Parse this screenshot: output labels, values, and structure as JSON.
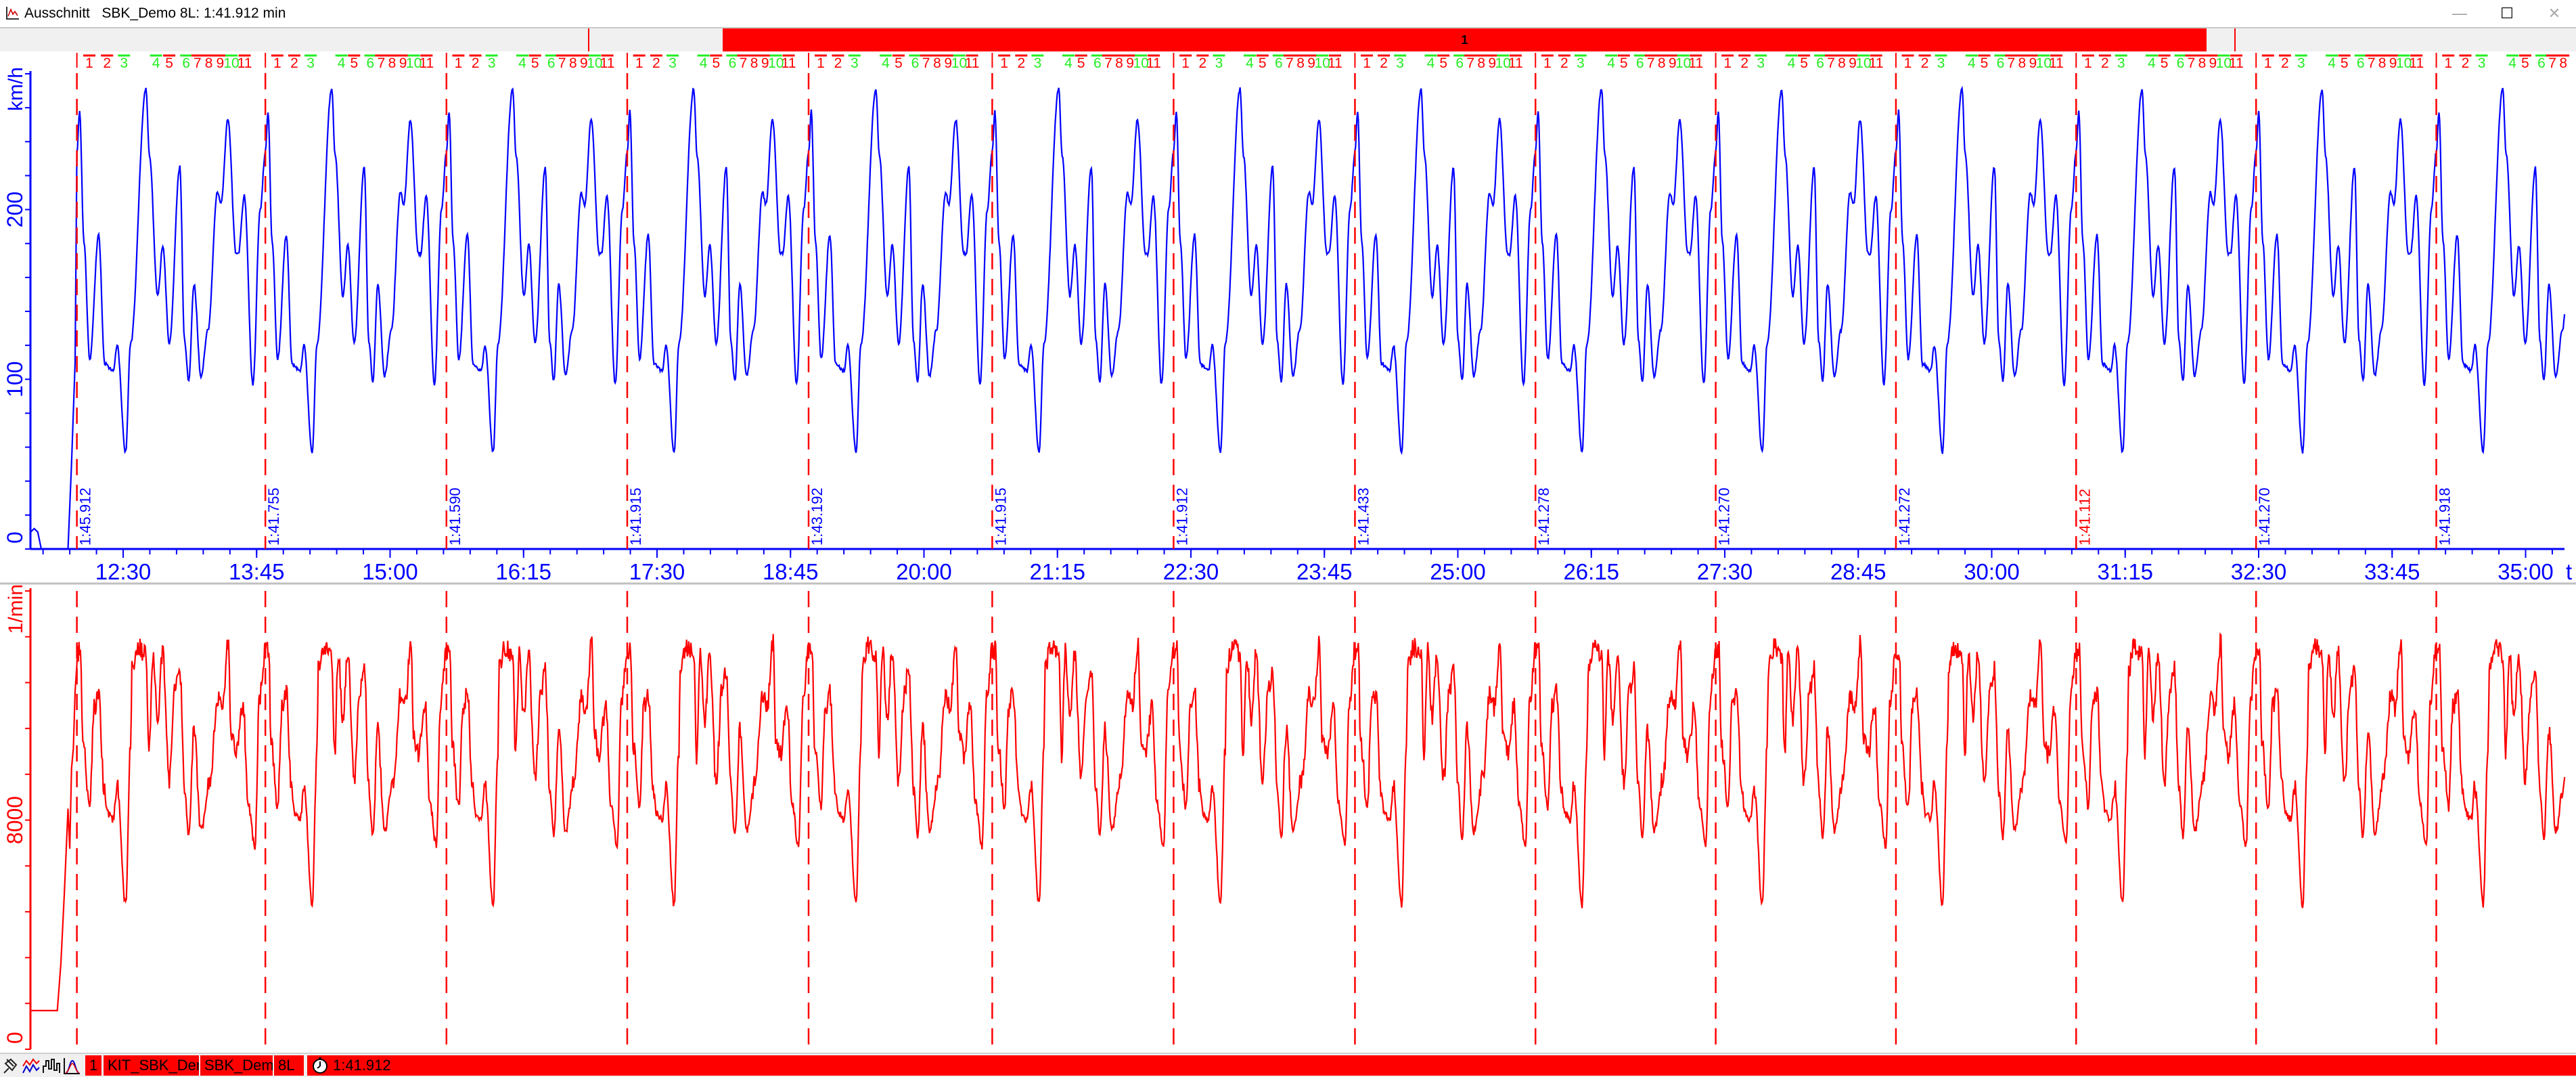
{
  "window": {
    "title": "Ausschnitt   SBK_Demo 8L: 1:41.912 min",
    "minimize_label": "—",
    "maximize_label": "☐",
    "close_label": "✕",
    "app_icon": "chart-window-icon"
  },
  "overview_bar": {
    "label": "1",
    "color": "#ff0000"
  },
  "laps": {
    "first_marker_time": "12:04",
    "times_label": [
      "1:45.912",
      "1:41.755",
      "1:41.590",
      "1:41.915",
      "1:43.192",
      "1:41.915",
      "1:41.912",
      "1:41.433",
      "1:41.278",
      "1:41.270",
      "1:41.272",
      "1:41.112",
      "1:41.270",
      "1:41.918"
    ],
    "times_s": [
      105.912,
      101.755,
      101.59,
      101.915,
      103.192,
      101.915,
      101.912,
      101.433,
      101.278,
      101.27,
      101.272,
      101.112,
      101.27,
      101.918
    ],
    "marker_color": "#ff0000",
    "label_color": "#0000ff",
    "fastest_label_color": "#ff0000"
  },
  "sectors": {
    "labels": [
      "1",
      "2",
      "3",
      "4",
      "5",
      "6",
      "7",
      "8",
      "9",
      "10",
      "11"
    ],
    "lap_fraction": [
      0.066,
      0.16,
      0.25,
      0.42,
      0.49,
      0.58,
      0.64,
      0.7,
      0.76,
      0.82,
      0.89
    ],
    "colors": [
      "#ff0000",
      "#ff0000",
      "#22ee22",
      "#22ee22",
      "#ff0000",
      "#22ee22",
      "#ff0000",
      "#ff0000",
      "#ff0000",
      "#22ee22",
      "#ff0000"
    ]
  },
  "chart_data": [
    {
      "type": "line",
      "ylabel": "km/h",
      "xlabel": "t",
      "color": "#0000ff",
      "ylim": [
        0,
        280
      ],
      "xlim": [
        "11:38",
        "35:22"
      ],
      "y_tick_labels": [
        "0",
        "100",
        "200"
      ],
      "y_minor_step": 20,
      "x_tick_labels": [
        "12:30",
        "13:45",
        "15:00",
        "16:15",
        "17:30",
        "18:45",
        "20:00",
        "21:15",
        "22:30",
        "23:45",
        "25:00",
        "26:15",
        "27:30",
        "28:45",
        "30:00",
        "31:15",
        "32:30",
        "33:45",
        "35:00"
      ],
      "x_minor_step_s": 15,
      "pre_lap": [
        [
          "11:38",
          10
        ],
        [
          "11:40",
          12
        ],
        [
          "11:42",
          10
        ],
        [
          "11:44",
          0
        ],
        [
          "11:59",
          0
        ],
        [
          "12:01",
          50
        ],
        [
          "12:03",
          110
        ]
      ],
      "lap_profile": {
        "t_s": [
          0,
          1.5,
          3.8,
          6.95,
          11.8,
          15,
          19.6,
          21.7,
          26.3,
          29,
          37.3,
          39.2,
          43.6,
          46.4,
          49.9,
          55.6,
          58.1,
          60.4,
          63.2,
          67,
          70.8,
          75.9,
          77.8,
          81.5,
          86,
          87.2,
          90.4,
          95,
          99,
          101.755
        ],
        "values": [
          234,
          258,
          181,
          112,
          185,
          109,
          105,
          120,
          57,
          121,
          271,
          232,
          149,
          179,
          121,
          225,
          123,
          99,
          156,
          102,
          129,
          210,
          203,
          253,
          174,
          174,
          208,
          97,
          200,
          234
        ]
      }
    },
    {
      "type": "line",
      "ylabel": "1/min",
      "color": "#ff0000",
      "ylim": [
        0,
        16000
      ],
      "xlim": [
        "11:38",
        "35:22"
      ],
      "y_tick_labels": [
        "0",
        "8000"
      ],
      "y_minor_step": 1600,
      "pre_lap": [
        [
          "11:38",
          1350
        ],
        [
          "11:53",
          1350
        ],
        [
          "11:55",
          3000
        ],
        [
          "11:57",
          5500
        ],
        [
          "11:59",
          8400
        ],
        [
          "12:00",
          7000
        ],
        [
          "12:01",
          9800
        ],
        [
          "12:02",
          10500
        ],
        [
          "12:03",
          12500
        ]
      ],
      "lap_profile": {
        "t_s": [
          0,
          1.9,
          3.2,
          6.95,
          9.3,
          11.8,
          14.6,
          16.5,
          19.6,
          21.7,
          26.3,
          29,
          29.7,
          32.9,
          37.3,
          38.9,
          41,
          43.6,
          46.2,
          49.9,
          53.1,
          55.6,
          58.1,
          60.4,
          63.2,
          67,
          72,
          75.9,
          78.4,
          81.9,
          83.2,
          86,
          89.8,
          92.3,
          96.1,
          98.6,
          101.755
        ],
        "values": [
          13780,
          13975,
          10700,
          8440,
          11930,
          12440,
          9150,
          8240,
          8020,
          9150,
          5050,
          10490,
          13270,
          14070,
          13780,
          10290,
          13880,
          11510,
          13880,
          9370,
          12540,
          13270,
          9150,
          7410,
          11100,
          7610,
          9460,
          12340,
          11930,
          14290,
          11000,
          10290,
          12020,
          8630,
          7100,
          12240,
          13975
        ]
      }
    }
  ],
  "status_bar": {
    "icons": [
      "pushpin-icon",
      "overlay-traces-icon",
      "histogram-icon",
      "distribution-icon"
    ],
    "lap_number": "1",
    "event": "KIT_SBK_Demo",
    "session": "SBK_Demo",
    "laps": "8L",
    "clock_icon": "stopwatch-icon",
    "lap_time": "1:41.912",
    "color": "#ff0000"
  }
}
